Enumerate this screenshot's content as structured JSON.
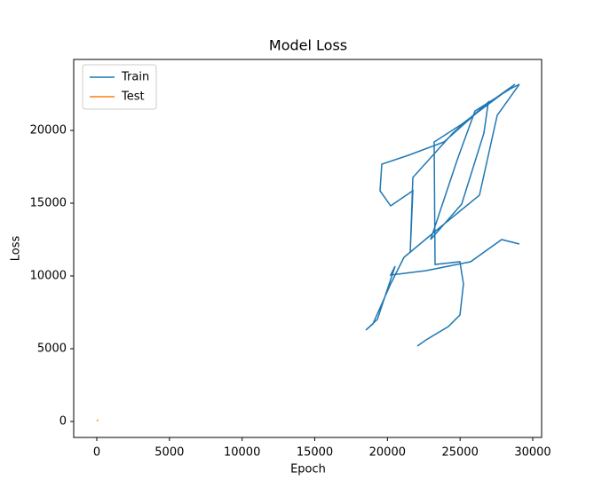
{
  "chart_data": {
    "type": "line",
    "title": "Model Loss",
    "x_label": "Epoch",
    "y_label": "Loss",
    "xlim": [
      -1589,
      30611
    ],
    "ylim": [
      -1098,
      24878
    ],
    "xticks": [
      0,
      5000,
      10000,
      15000,
      20000,
      25000,
      30000
    ],
    "yticks": [
      0,
      5000,
      10000,
      15000,
      20000
    ],
    "legend": "upper left",
    "series": [
      {
        "name": "Train",
        "color": "#1f77b4",
        "x": [
          22057,
          22667,
          24195,
          24989,
          25233,
          24989,
          23278,
          23217,
          25111,
          27555,
          28777,
          26639,
          23889,
          21445,
          19612,
          19490,
          20223,
          21751,
          21567,
          21751,
          24500,
          26944,
          26639,
          25111,
          22972,
          24806,
          26028,
          28472,
          29083,
          27555,
          26333,
          23339,
          21140,
          20223,
          19001,
          18512,
          19307,
          20529,
          20223,
          22667,
          25722,
          27861,
          29083
        ],
        "values": [
          5183,
          5610,
          6524,
          7317,
          9451,
          10976,
          10793,
          19207,
          20427,
          22256,
          23171,
          21646,
          19207,
          18293,
          17683,
          15854,
          14817,
          15854,
          11585,
          16768,
          19817,
          21951,
          19817,
          14939,
          12500,
          17988,
          21341,
          22866,
          23171,
          21037,
          15549,
          13110,
          11280,
          9451,
          6707,
          6280,
          7012,
          10671,
          10061,
          10366,
          10976,
          12500,
          12195
        ]
      },
      {
        "name": "Test",
        "color": "#ff7f0e",
        "x": [
          0,
          50,
          100
        ],
        "values": [
          60,
          80,
          70
        ]
      }
    ]
  }
}
